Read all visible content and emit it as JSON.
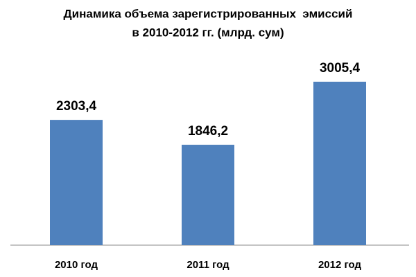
{
  "chart_data": {
    "type": "bar",
    "title": [
      "Динамика объема зарегистрированных  эмиссий",
      "в 2010-2012 гг. (млрд. сум)"
    ],
    "categories": [
      "2010 год",
      "2011 год",
      "2012 год"
    ],
    "values": [
      2303.4,
      1846.2,
      3005.4
    ],
    "value_labels": [
      "2303,4",
      "1846,2",
      "3005,4"
    ],
    "color": "#4f81bd"
  }
}
